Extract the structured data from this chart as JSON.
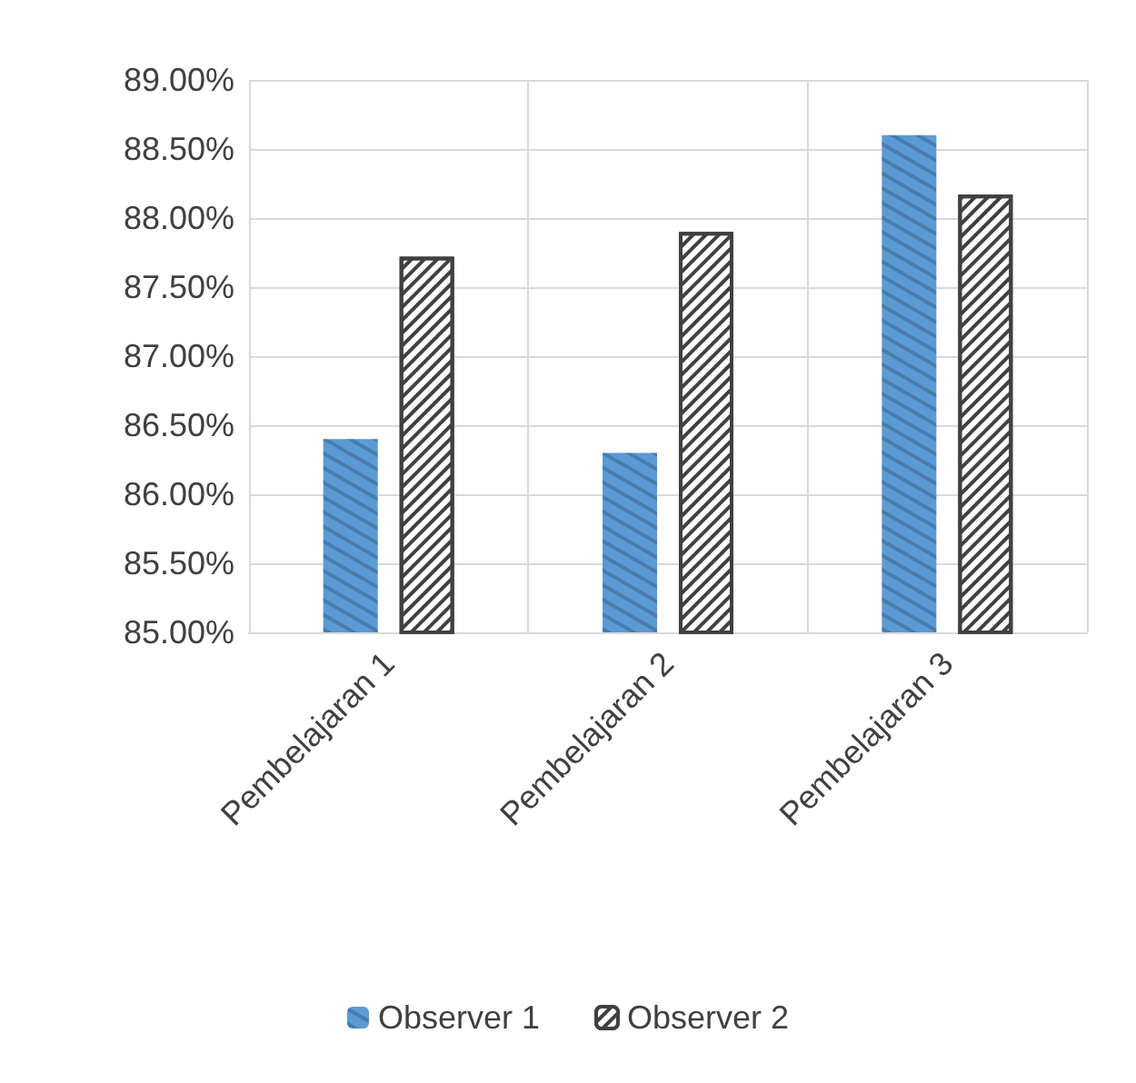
{
  "chart_data": {
    "type": "bar",
    "categories": [
      "Pembelajaran 1",
      "Pembelajaran 2",
      "Pembelajaran 3"
    ],
    "series": [
      {
        "name": "Observer 1",
        "color": "#5b9bd5",
        "values": [
          86.4,
          86.3,
          88.6
        ]
      },
      {
        "name": "Observer 2",
        "color": "#404040",
        "values": [
          87.72,
          87.9,
          88.17
        ]
      }
    ],
    "ylim": [
      85,
      89
    ],
    "yticks": [
      {
        "value": 85,
        "label": "85.00%"
      },
      {
        "value": 85.5,
        "label": "85.50%"
      },
      {
        "value": 86,
        "label": "86.00%"
      },
      {
        "value": 86.5,
        "label": "86.50%"
      },
      {
        "value": 87,
        "label": "87.00%"
      },
      {
        "value": 87.5,
        "label": "87.50%"
      },
      {
        "value": 88,
        "label": "88.00%"
      },
      {
        "value": 88.5,
        "label": "88.50%"
      },
      {
        "value": 89,
        "label": "89.00%"
      }
    ],
    "grid": true,
    "legend": "bottom"
  }
}
